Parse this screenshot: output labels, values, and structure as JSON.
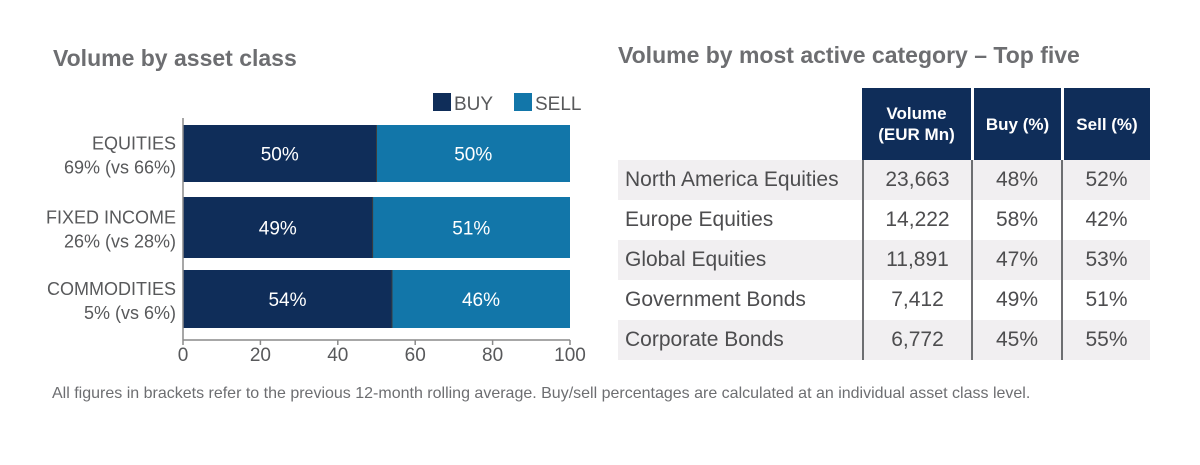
{
  "left_title": "Volume by asset class",
  "right_title": "Volume by most active category – Top five",
  "chart_data": [
    {
      "type": "bar",
      "stacked": true,
      "orientation": "horizontal",
      "title": "Volume by asset class",
      "categories": [
        "EQUITIES",
        "FIXED INCOME",
        "COMMODITIES"
      ],
      "category_sublabels": [
        "69% (vs 66%)",
        "26% (vs 28%)",
        "5% (vs 6%)"
      ],
      "series": [
        {
          "name": "BUY",
          "values": [
            50,
            49,
            54
          ],
          "labels": [
            "50%",
            "49%",
            "54%"
          ],
          "color": "#0f2d59"
        },
        {
          "name": "SELL",
          "values": [
            50,
            51,
            46
          ],
          "labels": [
            "50%",
            "51%",
            "46%"
          ],
          "color": "#1276a9"
        }
      ],
      "xlim": [
        0,
        100
      ],
      "xticks": [
        "0",
        "20",
        "40",
        "60",
        "80",
        "100"
      ],
      "legend": "top-right",
      "grid": false
    },
    {
      "type": "table",
      "title": "Volume by most active category – Top five",
      "columns": [
        "",
        "Volume (EUR Mn)",
        "Buy (%)",
        "Sell (%)"
      ],
      "rows": [
        [
          "North America Equities",
          "23,663",
          "48%",
          "52%"
        ],
        [
          "Europe Equities",
          "14,222",
          "58%",
          "42%"
        ],
        [
          "Global Equities",
          "11,891",
          "47%",
          "53%"
        ],
        [
          "Government Bonds",
          "7,412",
          "49%",
          "51%"
        ],
        [
          "Corporate Bonds",
          "6,772",
          "45%",
          "55%"
        ]
      ]
    }
  ],
  "table": {
    "header_volume_line1": "Volume",
    "header_volume_line2": "(EUR Mn)",
    "header_buy": "Buy (%)",
    "header_sell": "Sell (%)"
  },
  "footnote": "All figures in brackets refer to the previous 12-month rolling average. Buy/sell percentages are calculated at an individual asset class level."
}
